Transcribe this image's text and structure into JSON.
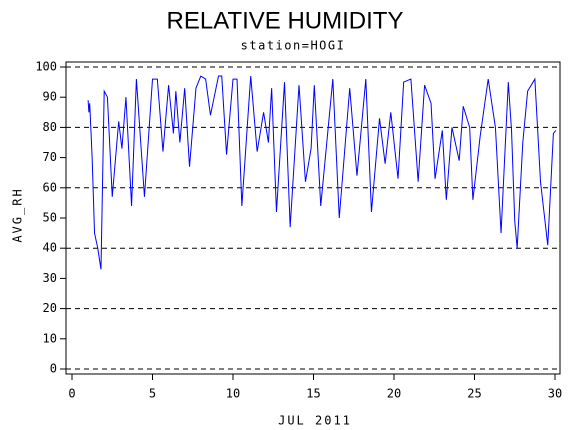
{
  "chart_data": {
    "type": "line",
    "title": "RELATIVE HUMIDITY",
    "subtitle": "station=HOGI",
    "x_label": "JUL 2011",
    "y_label": "AVG_RH",
    "x": [
      1.0,
      1.05,
      1.1,
      1.25,
      1.4,
      1.6,
      1.8,
      2.0,
      2.2,
      2.5,
      2.9,
      3.1,
      3.35,
      3.7,
      4.0,
      4.5,
      5.0,
      5.3,
      5.65,
      6.0,
      6.3,
      6.45,
      6.7,
      7.0,
      7.3,
      7.7,
      8.0,
      8.3,
      8.6,
      9.1,
      9.3,
      9.6,
      10.0,
      10.25,
      10.55,
      11.1,
      11.5,
      11.9,
      12.2,
      12.4,
      12.7,
      13.2,
      13.55,
      14.1,
      14.5,
      14.85,
      15.05,
      15.45,
      16.2,
      16.6,
      17.25,
      17.7,
      18.25,
      18.6,
      19.1,
      19.45,
      19.8,
      20.25,
      20.6,
      21.05,
      21.5,
      21.9,
      22.3,
      22.55,
      23.0,
      23.25,
      23.6,
      24.05,
      24.3,
      24.7,
      24.9,
      25.35,
      25.85,
      26.3,
      26.65,
      27.1,
      27.3,
      27.5,
      27.65,
      28.0,
      28.3,
      28.75,
      29.1,
      29.55,
      29.9,
      30.05
    ],
    "series": [
      {
        "name": "AVG_RH",
        "color": "#0000ff",
        "values": [
          89,
          85,
          88,
          70,
          45,
          40,
          33,
          92,
          90,
          57,
          82,
          73,
          90,
          54,
          96,
          57,
          96,
          96,
          72,
          94,
          78,
          92,
          75,
          93,
          67,
          93,
          97,
          96,
          84,
          97,
          97,
          71,
          96,
          96,
          54,
          97,
          72,
          85,
          75,
          93,
          52,
          95,
          47,
          94,
          62,
          73,
          94,
          54,
          96,
          50,
          93,
          64,
          96,
          52,
          83,
          68,
          85,
          63,
          95,
          96,
          62,
          94,
          88,
          63,
          79,
          56,
          80,
          69,
          87,
          80,
          56,
          77,
          96,
          80,
          45,
          95,
          79,
          49,
          40,
          75,
          92,
          96,
          62,
          41,
          78,
          79
        ]
      }
    ],
    "xlim": [
      0,
      30
    ],
    "ylim": [
      0,
      100
    ],
    "xticks": [
      0,
      5,
      10,
      15,
      20,
      25,
      30
    ],
    "yticks": [
      0,
      10,
      20,
      30,
      40,
      50,
      60,
      70,
      80,
      90,
      100
    ],
    "grid": "dashed"
  }
}
